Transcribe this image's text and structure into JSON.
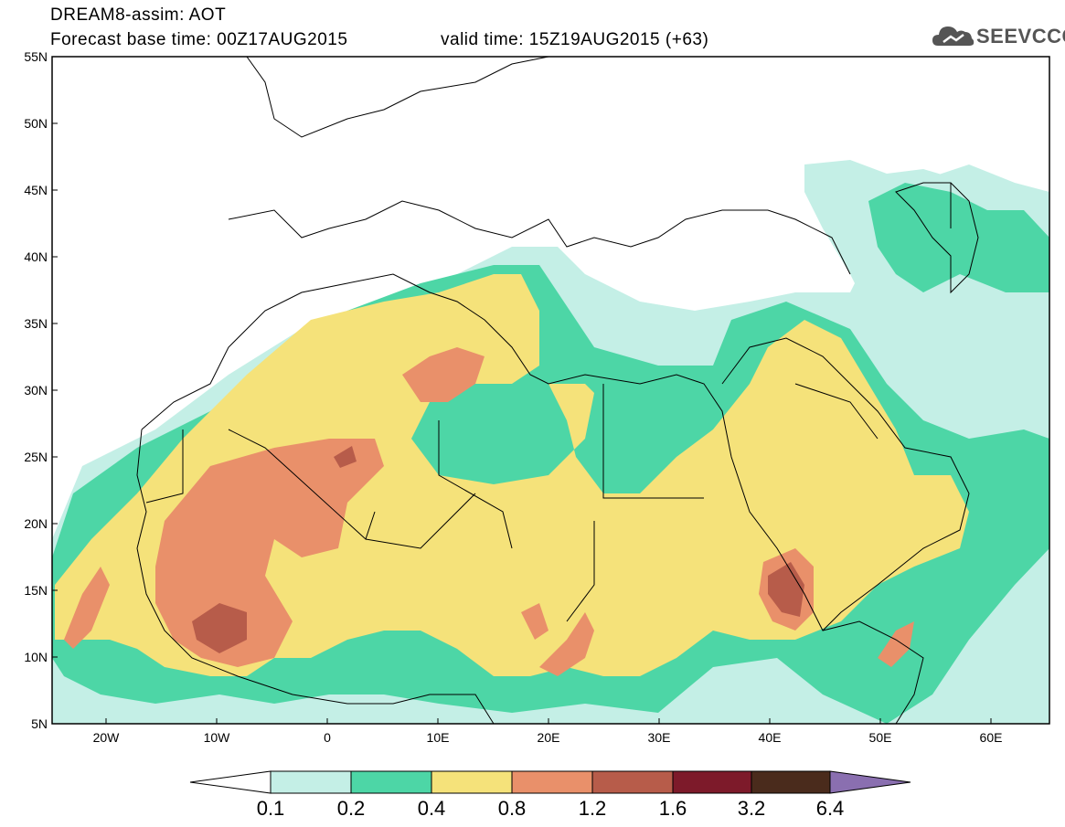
{
  "header": {
    "title": "DREAM8-assim: AOT",
    "base_time": "Forecast base time: 00Z17AUG2015",
    "valid_time": "valid time: 15Z19AUG2015 (+63)",
    "logo_text": "SEEVCCC"
  },
  "map": {
    "lat_labels": [
      "55N",
      "50N",
      "45N",
      "40N",
      "35N",
      "30N",
      "25N",
      "20N",
      "15N",
      "10N",
      "5N"
    ],
    "lon_labels": [
      "20W",
      "10W",
      "0",
      "10E",
      "20E",
      "30E",
      "40E",
      "50E",
      "60E"
    ],
    "colors": {
      "c01": "#c4efe6",
      "c02": "#4dd6a6",
      "c04": "#f5e27a",
      "c08": "#e9906a",
      "c12": "#b75c4a",
      "c16": "#7d1a2a",
      "c32": "#4a2b1c",
      "c64": "#8a6fb0"
    }
  },
  "colorbar": {
    "labels": [
      "0.1",
      "0.2",
      "0.4",
      "0.8",
      "1.2",
      "1.6",
      "3.2",
      "6.4"
    ]
  }
}
